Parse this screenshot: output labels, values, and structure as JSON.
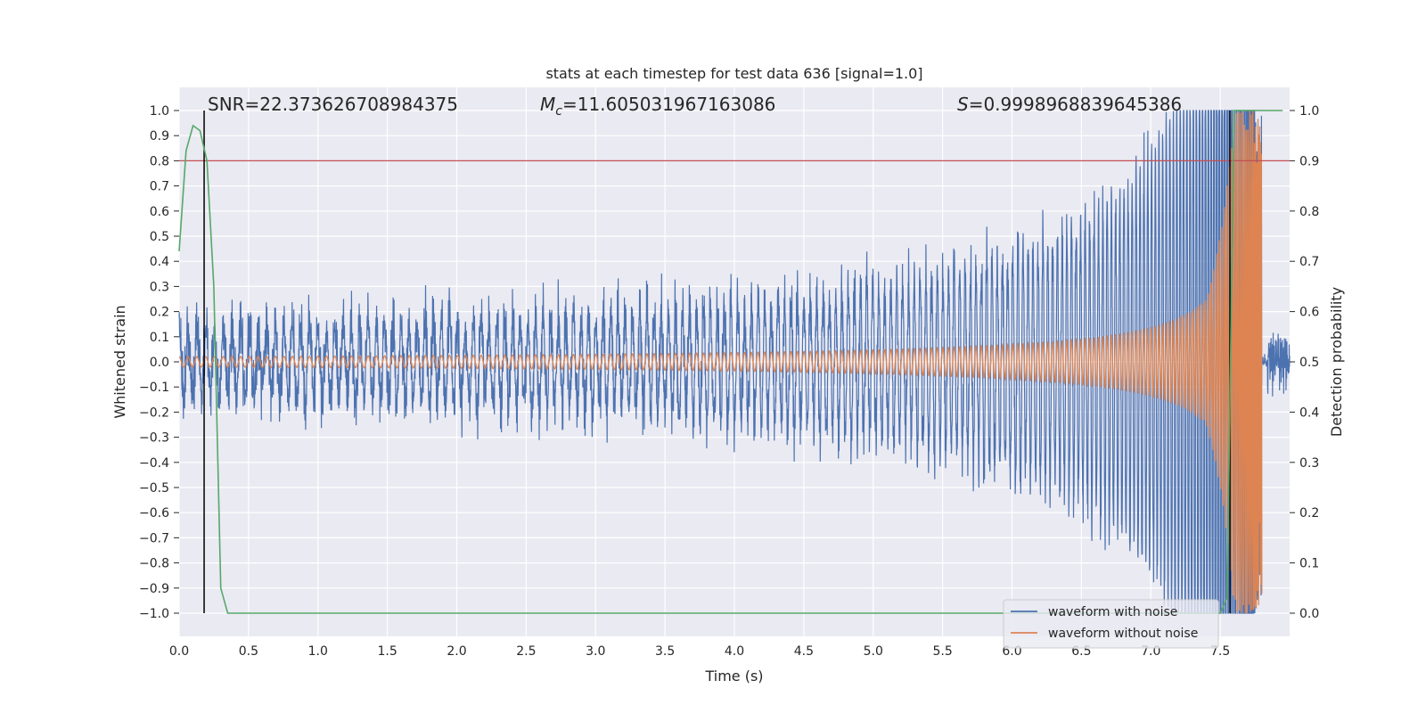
{
  "chart_data": {
    "type": "line",
    "title": "stats at each timestep for test data 636 [signal=1.0]",
    "xlabel": "Time (s)",
    "ylabel": "Whitened strain",
    "y2label": "Detection probability",
    "xlim": [
      0.0,
      8.0
    ],
    "ylim": [
      -1.0,
      1.0
    ],
    "y2lim": [
      0.0,
      1.0
    ],
    "x_ticks": [
      0.0,
      0.5,
      1.0,
      1.5,
      2.0,
      2.5,
      3.0,
      3.5,
      4.0,
      4.5,
      5.0,
      5.5,
      6.0,
      6.5,
      7.0,
      7.5
    ],
    "x_tick_labels": [
      "0.0",
      "0.5",
      "1.0",
      "1.5",
      "2.0",
      "2.5",
      "3.0",
      "3.5",
      "4.0",
      "4.5",
      "5.0",
      "5.5",
      "6.0",
      "6.5",
      "7.0",
      "7.5"
    ],
    "y_ticks": [
      1.0,
      0.9,
      0.8,
      0.7,
      0.6,
      0.5,
      0.4,
      0.3,
      0.2,
      0.1,
      0.0,
      -0.1,
      -0.2,
      -0.3,
      -0.4,
      -0.5,
      -0.6,
      -0.7,
      -0.8,
      -0.9,
      -1.0
    ],
    "y_tick_labels": [
      "1.0",
      "0.9",
      "0.8",
      "0.7",
      "0.6",
      "0.5",
      "0.4",
      "0.3",
      "0.2",
      "0.1",
      "0.0",
      "−0.1",
      "−0.2",
      "−0.3",
      "−0.4",
      "−0.5",
      "−0.6",
      "−0.7",
      "−0.8",
      "−0.9",
      "−1.0"
    ],
    "y2_ticks": [
      1.0,
      0.9,
      0.8,
      0.7,
      0.6,
      0.5,
      0.4,
      0.3,
      0.2,
      0.1,
      0.0
    ],
    "y2_tick_labels": [
      "1.0",
      "0.9",
      "0.8",
      "0.7",
      "0.6",
      "0.5",
      "0.4",
      "0.3",
      "0.2",
      "0.1",
      "0.0"
    ],
    "grid": true,
    "legend_position": "lower-right",
    "annotations": {
      "snr": "SNR=22.373626708984375",
      "mc_symbol": "M",
      "mc_sub": "c",
      "mc_value": "=11.605031967163086",
      "s_symbol": "S",
      "s_value": "=0.9998968839645386"
    },
    "threshold": {
      "y": 0.8,
      "color": "#c44e52"
    },
    "vlines": [
      0.18,
      7.57
    ],
    "series": [
      {
        "name": "waveform with noise",
        "color": "#4c72b0",
        "description_kind": "noisy_chirp",
        "base_amplitude": 0.16,
        "t_merge": 7.8,
        "t_end": 8.0
      },
      {
        "name": "waveform without noise",
        "color": "#dd8452",
        "description_kind": "clean_chirp",
        "base_amplitude": 0.02,
        "t_merge": 7.8
      },
      {
        "name": "detection probability",
        "color": "#55a868",
        "axis": "right",
        "x": [
          0.0,
          0.05,
          0.1,
          0.15,
          0.2,
          0.25,
          0.3,
          0.35,
          0.4,
          0.45,
          7.5,
          7.55,
          7.6,
          7.65,
          7.7,
          7.75,
          7.8,
          7.85,
          7.9,
          7.95
        ],
        "y": [
          0.72,
          0.92,
          0.97,
          0.96,
          0.9,
          0.65,
          0.05,
          0.0,
          0.0,
          0.0,
          0.0,
          0.03,
          1.0,
          1.0,
          1.0,
          1.0,
          1.0,
          1.0,
          1.0,
          1.0
        ]
      }
    ],
    "legend": [
      {
        "label": "waveform with noise",
        "color": "#4c72b0"
      },
      {
        "label": "waveform without noise",
        "color": "#dd8452"
      }
    ]
  }
}
